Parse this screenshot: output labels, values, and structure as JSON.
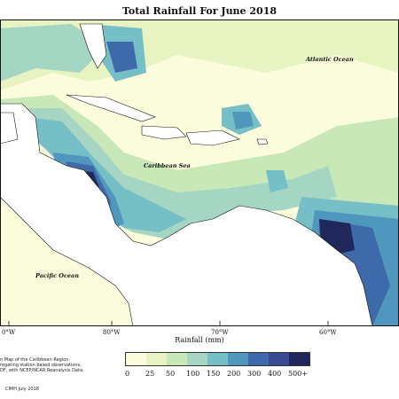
{
  "title": "Total Rainfall For June 2018",
  "map_labels": {
    "atlantic": "Atlantic Ocean",
    "caribbean": "Caribbean Sea",
    "pacific": "Pacific Ocean"
  },
  "longitude_ticks": [
    "0°W",
    "80°W",
    "70°W",
    "60°W"
  ],
  "legend": {
    "title": "Rainfall (mm)",
    "labels": [
      "0",
      "25",
      "50",
      "100",
      "150",
      "200",
      "300",
      "400",
      "500+"
    ],
    "colors": [
      "#fbfcdc",
      "#e7f3c0",
      "#c9e8b8",
      "#a4d6c3",
      "#77bfc6",
      "#4f97bd",
      "#3f6aa9",
      "#3a4a91",
      "#20275a"
    ]
  },
  "notes": [
    "n Map of the Caribbean Region.",
    "regating station based observations,",
    "DF, with NCEP/NCAR Reanalysis Data."
  ],
  "credit": "CIMH July 2018"
}
